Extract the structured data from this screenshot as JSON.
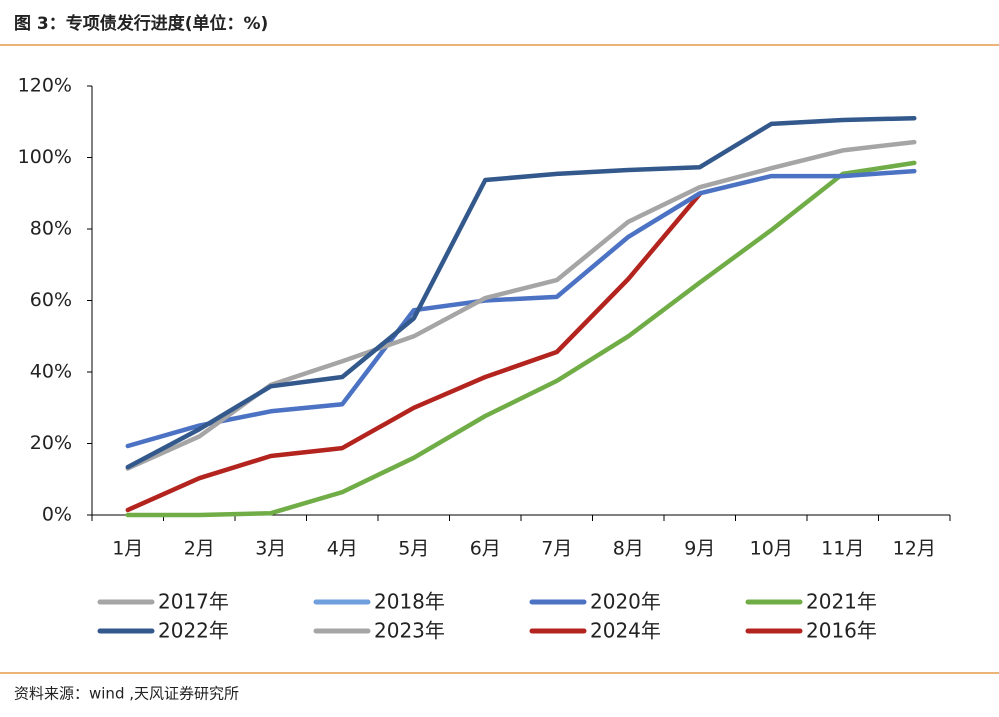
{
  "chart_data": {
    "type": "line",
    "title": "图 3：专项债发行进度(单位：%)",
    "source": "资料来源：wind ,天风证券研究所",
    "categories": [
      "1月",
      "2月",
      "3月",
      "4月",
      "5月",
      "6月",
      "7月",
      "8月",
      "9月",
      "10月",
      "11月",
      "12月"
    ],
    "ylim": [
      0,
      120
    ],
    "yticks": [
      {
        "value": 0,
        "label": "0%"
      },
      {
        "value": 20,
        "label": "20%"
      },
      {
        "value": 40,
        "label": "40%"
      },
      {
        "value": 60,
        "label": "60%"
      },
      {
        "value": 80,
        "label": "80%"
      },
      {
        "value": 100,
        "label": "100%"
      },
      {
        "value": 120,
        "label": "120%"
      }
    ],
    "grid": false,
    "legend": "bottom",
    "series": [
      {
        "name": "2017年",
        "color": "#a5a5a5",
        "values": [
          null,
          null,
          null,
          null,
          null,
          null,
          null,
          null,
          null,
          null,
          null,
          null
        ]
      },
      {
        "name": "2018年",
        "color": "#6f9fdc",
        "values": [
          null,
          null,
          null,
          null,
          null,
          null,
          null,
          null,
          null,
          null,
          null,
          null
        ]
      },
      {
        "name": "2020年",
        "color": "#4c72c4",
        "values": [
          19.3,
          25,
          29,
          31,
          57.3,
          60,
          61,
          77.8,
          90,
          94.8,
          94.8,
          96.2
        ]
      },
      {
        "name": "2021年",
        "color": "#70ad47",
        "values": [
          0,
          0,
          0.5,
          6.4,
          16,
          27.7,
          37.5,
          50,
          65,
          79.7,
          95.4,
          98.5
        ]
      },
      {
        "name": "2022年",
        "color": "#33598c",
        "values": [
          13.4,
          24,
          36,
          38.6,
          55,
          93.7,
          95.4,
          96.5,
          97.3,
          109.4,
          110.5,
          111
        ]
      },
      {
        "name": "2023年",
        "color": "#a5a5a5",
        "values": [
          13,
          22,
          36.4,
          43,
          50,
          60.7,
          65.7,
          82,
          91.7,
          97,
          102,
          104.3
        ]
      },
      {
        "name": "2024年",
        "color": "#b3241f",
        "values": [
          1.4,
          10.3,
          16.5,
          18.7,
          30,
          38.6,
          45.6,
          66,
          89.8,
          null,
          null,
          null
        ]
      },
      {
        "name": "2016年",
        "color": "#b3241f",
        "values": [
          null,
          null,
          null,
          null,
          null,
          null,
          null,
          null,
          null,
          null,
          null,
          null
        ]
      }
    ]
  }
}
